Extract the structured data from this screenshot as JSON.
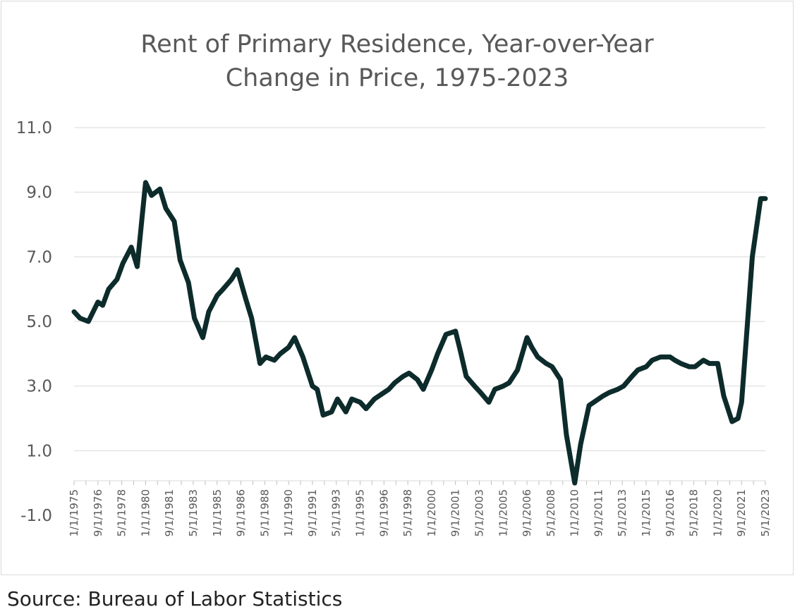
{
  "source": "Source: Bureau of Labor Statistics",
  "chart_data": {
    "type": "line",
    "title_lines": [
      "Rent of Primary Residence, Year-over-Year",
      "Change in Price, 1975-2023"
    ],
    "xlabel": "",
    "ylabel": "",
    "ylim": [
      -1.0,
      11.0
    ],
    "y_ticks": [
      "-1.0",
      "1.0",
      "3.0",
      "5.0",
      "7.0",
      "9.0",
      "11.0"
    ],
    "x_ticks": [
      "1/1/1975",
      "9/1/1976",
      "5/1/1978",
      "1/1/1980",
      "9/1/1981",
      "5/1/1983",
      "1/1/1985",
      "9/1/1986",
      "5/1/1988",
      "1/1/1990",
      "9/1/1991",
      "5/1/1993",
      "1/1/1995",
      "9/1/1996",
      "5/1/1998",
      "1/1/2000",
      "9/1/2001",
      "5/1/2003",
      "1/1/2005",
      "9/1/2006",
      "5/1/2008",
      "1/1/2010",
      "9/1/2011",
      "5/1/2013",
      "1/1/2015",
      "9/1/2016",
      "5/1/2018",
      "1/1/2020",
      "9/1/2021",
      "5/1/2023"
    ],
    "x_range": [
      "1/1/1975",
      "5/1/2023"
    ],
    "grid": "horizontal",
    "legend": "none",
    "line_color": "#0d2b2b",
    "series": [
      {
        "x": [
          "1/1/1975",
          "6/1/1975",
          "1/1/1976",
          "9/1/1976",
          "1/1/1977",
          "6/1/1977",
          "1/1/1978",
          "6/1/1978",
          "1/1/1979",
          "6/1/1979",
          "10/1/1979",
          "1/1/1980",
          "6/1/1980",
          "1/1/1981",
          "6/1/1981",
          "1/1/1982",
          "6/1/1982",
          "1/1/1983",
          "6/1/1983",
          "1/1/1984",
          "6/1/1984",
          "1/1/1985",
          "6/1/1985",
          "1/1/1986",
          "6/1/1986",
          "1/1/1987",
          "6/1/1987",
          "1/1/1988",
          "6/1/1988",
          "1/1/1989",
          "6/1/1989",
          "1/1/1990",
          "6/1/1990",
          "1/1/1991",
          "9/1/1991",
          "1/1/1992",
          "6/1/1992",
          "1/1/1993",
          "6/1/1993",
          "1/1/1994",
          "6/1/1994",
          "1/1/1995",
          "6/1/1995",
          "1/1/1996",
          "9/1/1996",
          "1/1/1997",
          "6/1/1997",
          "1/1/1998",
          "6/1/1998",
          "1/1/1999",
          "6/1/1999",
          "1/1/2000",
          "6/1/2000",
          "1/1/2001",
          "9/1/2001",
          "1/1/2002",
          "6/1/2002",
          "1/1/2003",
          "6/1/2003",
          "1/1/2004",
          "6/1/2004",
          "1/1/2005",
          "6/1/2005",
          "1/1/2006",
          "9/1/2006",
          "1/1/2007",
          "6/1/2007",
          "1/1/2008",
          "6/1/2008",
          "1/1/2009",
          "6/1/2009",
          "1/1/2010",
          "6/1/2010",
          "1/1/2011",
          "9/1/2011",
          "1/1/2012",
          "6/1/2012",
          "1/1/2013",
          "6/1/2013",
          "1/1/2014",
          "6/1/2014",
          "1/1/2015",
          "6/1/2015",
          "1/1/2016",
          "9/1/2016",
          "1/1/2017",
          "6/1/2017",
          "1/1/2018",
          "6/1/2018",
          "1/1/2019",
          "6/1/2019",
          "1/1/2020",
          "6/1/2020",
          "1/1/2021",
          "6/1/2021",
          "9/1/2021",
          "1/1/2022",
          "6/1/2022",
          "1/1/2023",
          "5/1/2023"
        ],
        "values": [
          5.3,
          5.1,
          5.0,
          5.6,
          5.5,
          6.0,
          6.3,
          6.8,
          7.3,
          6.7,
          8.2,
          9.3,
          8.9,
          9.1,
          8.5,
          8.1,
          6.9,
          6.2,
          5.1,
          4.5,
          5.3,
          5.8,
          6.0,
          6.3,
          6.6,
          5.7,
          5.1,
          3.7,
          3.9,
          3.8,
          4.0,
          4.2,
          4.5,
          3.9,
          3.0,
          2.9,
          2.1,
          2.2,
          2.6,
          2.2,
          2.6,
          2.5,
          2.3,
          2.6,
          2.8,
          2.9,
          3.1,
          3.3,
          3.4,
          3.2,
          2.9,
          3.5,
          4.0,
          4.6,
          4.7,
          4.1,
          3.3,
          3.0,
          2.8,
          2.5,
          2.9,
          3.0,
          3.1,
          3.5,
          4.5,
          4.2,
          3.9,
          3.7,
          3.6,
          3.2,
          1.5,
          0.0,
          1.2,
          2.4,
          2.6,
          2.7,
          2.8,
          2.9,
          3.0,
          3.3,
          3.5,
          3.6,
          3.8,
          3.9,
          3.9,
          3.8,
          3.7,
          3.6,
          3.6,
          3.8,
          3.7,
          3.7,
          2.7,
          1.9,
          2.0,
          2.5,
          4.5,
          7.0,
          8.8,
          8.8
        ]
      }
    ]
  }
}
